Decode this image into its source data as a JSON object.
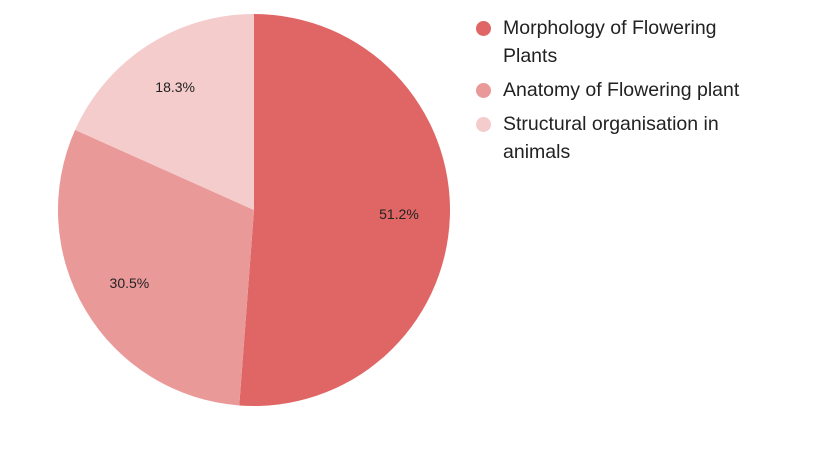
{
  "chart_data": {
    "type": "pie",
    "categories": [
      "Morphology of Flowering Plants",
      "Anatomy of Flowering plant",
      "Structural organisation in animals"
    ],
    "values": [
      51.2,
      30.5,
      18.3
    ],
    "value_labels": [
      "51.2%",
      "30.5%",
      "18.3%"
    ],
    "colors": [
      "#e06666",
      "#ea9999",
      "#f4cccc"
    ],
    "legend": "right"
  }
}
